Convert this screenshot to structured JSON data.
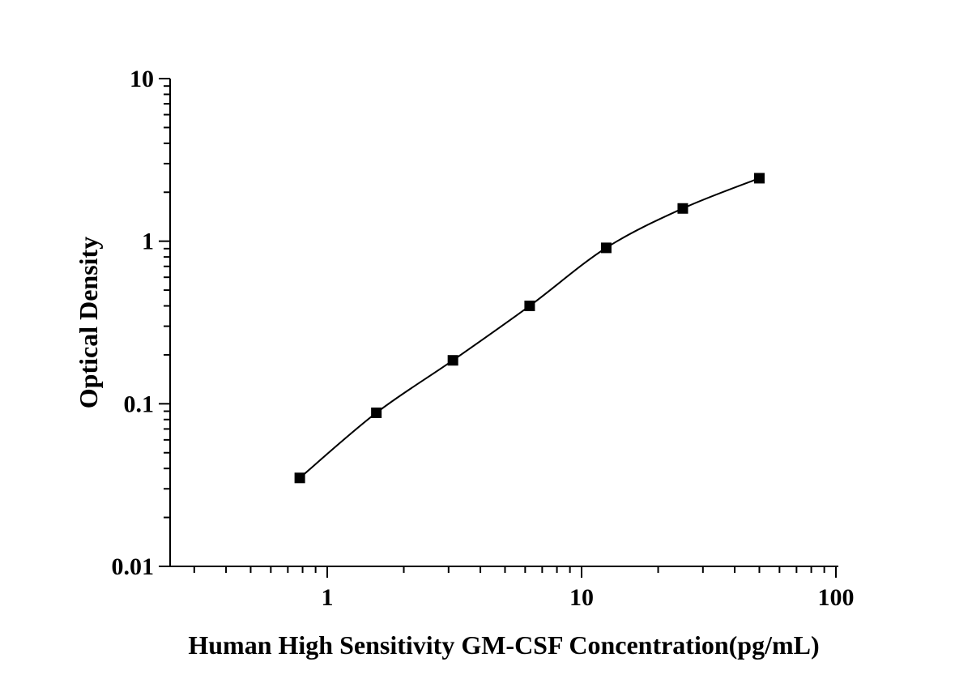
{
  "chart_data": {
    "type": "line",
    "title": "",
    "xlabel": "Human High Sensitivity GM-CSF Concentration(pg/mL)",
    "ylabel": "Optical Density",
    "x_scale": "log",
    "y_scale": "log",
    "xlim": [
      0.2,
      100
    ],
    "ylim": [
      0.01,
      10
    ],
    "x_ticks": [
      "1",
      "10",
      "100"
    ],
    "y_ticks": [
      "0.01",
      "0.1",
      "1",
      "10"
    ],
    "grid": false,
    "legend": "none",
    "marker": "square",
    "line_style": "smooth",
    "color": "#000000",
    "series": [
      {
        "x": [
          0.78,
          1.56,
          3.12,
          6.25,
          12.5,
          25,
          50
        ],
        "y": [
          0.035,
          0.088,
          0.185,
          0.4,
          0.91,
          1.59,
          2.44
        ]
      }
    ]
  }
}
